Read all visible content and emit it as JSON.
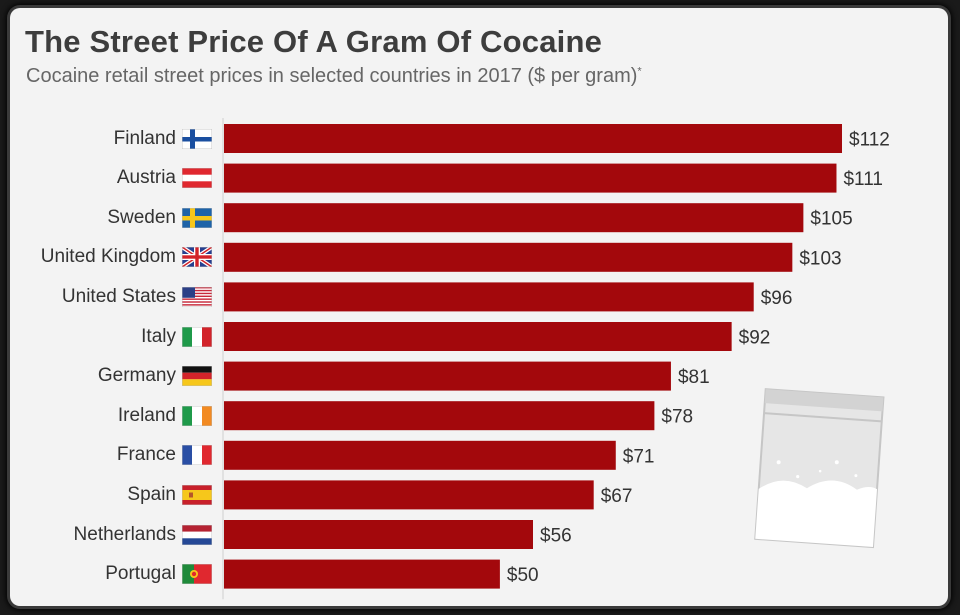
{
  "title": "The Street Price Of A Gram Of Cocaine",
  "subtitle": "Cocaine retail street prices in selected countries in 2017 ($ per gram)",
  "subtitle_mark": "*",
  "colors": {
    "bar": "#a3080c",
    "background": "#f3f3f3",
    "grid": "#cfcfcf"
  },
  "chart_data": {
    "type": "bar",
    "orientation": "horizontal",
    "categories": [
      "Finland",
      "Austria",
      "Sweden",
      "United Kingdom",
      "United States",
      "Italy",
      "Germany",
      "Ireland",
      "France",
      "Spain",
      "Netherlands",
      "Portugal"
    ],
    "values": [
      112,
      111,
      105,
      103,
      96,
      92,
      81,
      78,
      71,
      67,
      56,
      50
    ],
    "value_labels": [
      "$112",
      "$111",
      "$105",
      "$103",
      "$96",
      "$92",
      "$81",
      "$78",
      "$71",
      "$67",
      "$56",
      "$50"
    ],
    "flags": [
      "finland-flag-icon",
      "austria-flag-icon",
      "sweden-flag-icon",
      "united-kingdom-flag-icon",
      "united-states-flag-icon",
      "italy-flag-icon",
      "germany-flag-icon",
      "ireland-flag-icon",
      "france-flag-icon",
      "spain-flag-icon",
      "netherlands-flag-icon",
      "portugal-flag-icon"
    ],
    "xlim": [
      0,
      112
    ],
    "grid": false,
    "legend": "none"
  },
  "decoration": {
    "icon": "baggie-icon"
  }
}
